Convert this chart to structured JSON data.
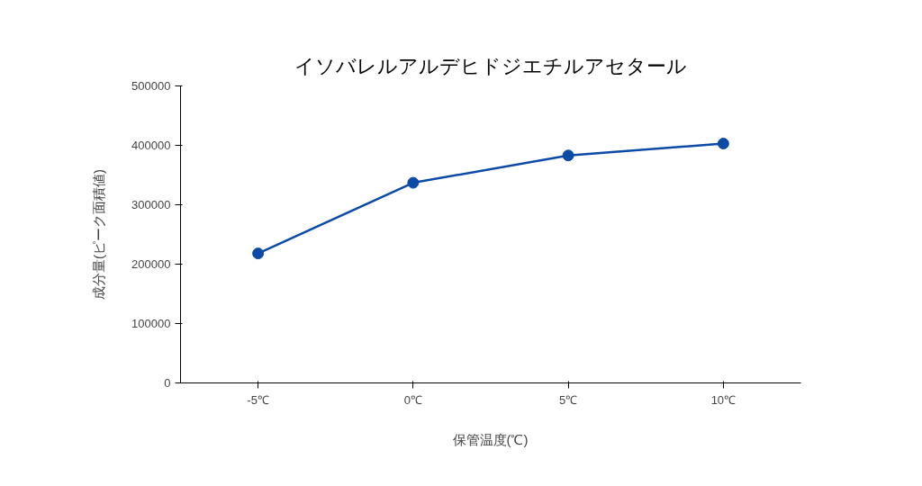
{
  "chart_data": {
    "type": "line",
    "title": "イソバレルアルデヒドジエチルアセタール",
    "xlabel": "保管温度(℃)",
    "ylabel": "成分量(ピーク面積値)",
    "categories": [
      "-5℃",
      "0℃",
      "5℃",
      "10℃"
    ],
    "series": [
      {
        "color": "#0b4aa6",
        "values": [
          218000,
          337000,
          383000,
          403000
        ]
      }
    ],
    "ylim": [
      0,
      500000
    ],
    "yticks": [
      0,
      100000,
      200000,
      300000,
      400000,
      500000
    ],
    "grid": false,
    "marker": "circle",
    "line_style": "solid"
  }
}
